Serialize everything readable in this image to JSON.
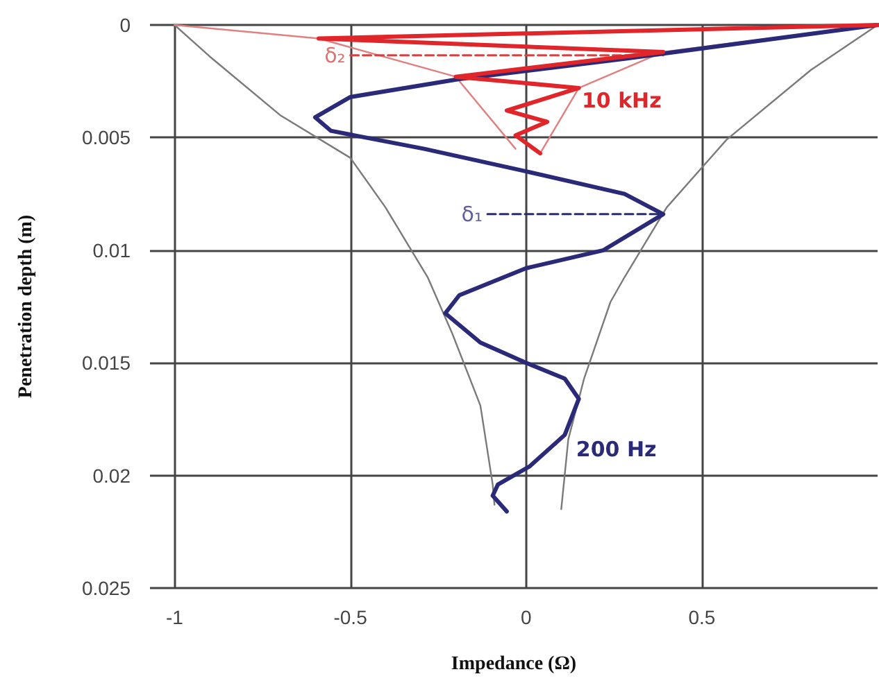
{
  "chart_data": {
    "type": "line",
    "xlabel": "Impedance (Ω)",
    "ylabel": "Penetration depth (m)",
    "xlim": [
      -1.07,
      1
    ],
    "xticks": [
      -1,
      -0.5,
      0,
      0.5
    ],
    "ylim": [
      0.025,
      0
    ],
    "yticks": [
      0,
      0.005,
      0.01,
      0.015,
      0.02,
      0.025
    ],
    "grid": true,
    "marker": "none",
    "annotations": [
      "δ₁",
      "δ₂"
    ],
    "series": [
      {
        "color": "#7a7a7a",
        "x": [
          -1,
          -0.9,
          -0.7,
          -0.5,
          -0.4,
          -0.28,
          -0.21,
          -0.13,
          -0.095,
          -0.09
        ],
        "values": [
          0,
          0.0014,
          0.004,
          0.0059,
          0.0081,
          0.0112,
          0.0137,
          0.0169,
          0.0204,
          0.0213
        ]
      },
      {
        "color": "#7a7a7a",
        "x": [
          1,
          0.81,
          0.57,
          0.4,
          0.28,
          0.24,
          0.165,
          0.12,
          0.1
        ],
        "values": [
          0,
          0.002,
          0.0051,
          0.0081,
          0.0112,
          0.0123,
          0.0157,
          0.0184,
          0.0215
        ]
      },
      {
        "color": "#e08080",
        "x": [
          -1,
          -0.59,
          -0.2,
          -0.03
        ],
        "values": [
          0,
          0.0006,
          0.0023,
          0.0055
        ]
      },
      {
        "color": "#e08080",
        "x": [
          1,
          0.39,
          0.15,
          0.04
        ],
        "values": [
          0,
          0.0012,
          0.0028,
          0.0057
        ]
      },
      {
        "color": "#2b2a78",
        "line_style": "dashed",
        "x": [
          -0.11,
          0.39
        ],
        "values": [
          0.0084,
          0.0084
        ]
      },
      {
        "color": "#d94040",
        "line_style": "dashed",
        "x": [
          -0.5,
          0.39
        ],
        "values": [
          0.00135,
          0.00135
        ]
      },
      {
        "name": "200 Hz",
        "color": "#2b2a78",
        "x": [
          1,
          0.28,
          -0.19,
          -0.5,
          -0.6,
          -0.555,
          -0.29,
          0,
          0.28,
          0.39,
          0.22,
          0,
          -0.19,
          -0.23,
          -0.13,
          0,
          0.11,
          0.15,
          0.11,
          0.01,
          -0.08,
          -0.095,
          -0.055
        ],
        "values": [
          0,
          0.0015,
          0.0024,
          0.0032,
          0.0041,
          0.0047,
          0.0055,
          0.0065,
          0.0075,
          0.0084,
          0.01,
          0.0108,
          0.012,
          0.0128,
          0.0141,
          0.015,
          0.0157,
          0.0166,
          0.0182,
          0.0196,
          0.0204,
          0.0209,
          0.0216
        ]
      },
      {
        "name": "10 kHz",
        "color": "#e0262a",
        "x": [
          1,
          -0.59,
          0.39,
          -0.2,
          0.15,
          -0.055,
          0.06,
          -0.03,
          0.04
        ],
        "values": [
          0,
          0.0006,
          0.0012,
          0.0023,
          0.0028,
          0.0038,
          0.0043,
          0.0049,
          0.0057
        ]
      }
    ]
  }
}
